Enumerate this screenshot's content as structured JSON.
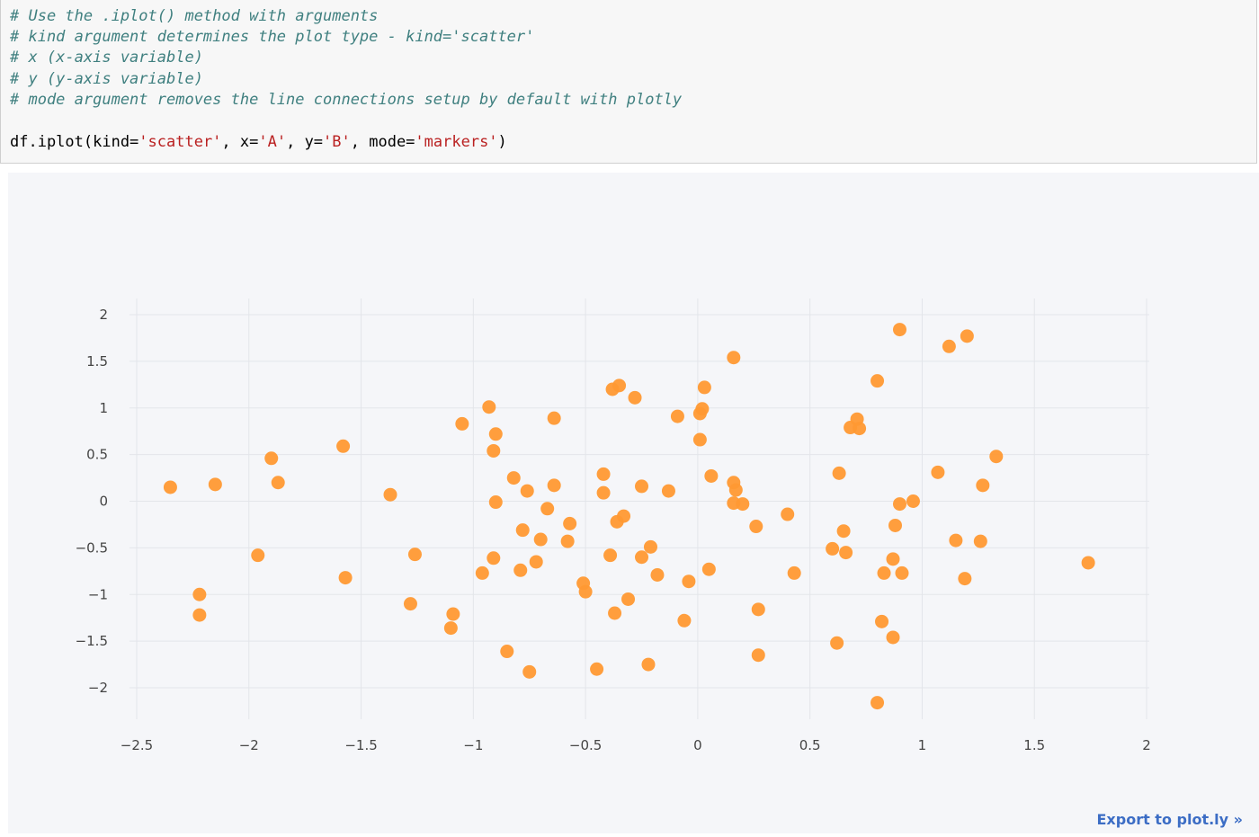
{
  "code_cell": {
    "comment_lines": [
      "# Use the .iplot() method with arguments",
      "# kind argument determines the plot type - kind='scatter'",
      "# x (x-axis variable)",
      "# y (y-axis variable)",
      "# mode argument removes the line connections setup by default with plotly"
    ],
    "code": {
      "part1": "df.iplot(kind=",
      "str1": "'scatter'",
      "part2": ", x=",
      "str2": "'A'",
      "part3": ", y=",
      "str3": "'B'",
      "part4": ", mode=",
      "str4": "'markers'",
      "part5": ")"
    }
  },
  "export_link": "Export to plot.ly »",
  "colors": {
    "marker": "#ff9933",
    "grid": "#e3e5ea",
    "background": "#f5f6f9",
    "link": "#3c6dc5"
  },
  "chart_data": {
    "type": "scatter",
    "mode": "markers",
    "xlim": [
      -2.5,
      2
    ],
    "ylim": [
      -2,
      2
    ],
    "x_ticks": [
      -2.5,
      -2,
      -1.5,
      -1,
      -0.5,
      0,
      0.5,
      1,
      1.5,
      2
    ],
    "y_ticks": [
      2,
      1.5,
      1,
      0.5,
      0,
      -0.5,
      -1,
      -1.5,
      -2
    ],
    "x_tick_labels": [
      "−2.5",
      "−2",
      "−1.5",
      "−1",
      "−0.5",
      "0",
      "0.5",
      "1",
      "1.5",
      "2"
    ],
    "y_tick_labels": [
      "2",
      "1.5",
      "1",
      "0.5",
      "0",
      "−0.5",
      "−1",
      "−1.5",
      "−2"
    ],
    "grid": true,
    "series": [
      {
        "points": [
          [
            -2.35,
            0.15
          ],
          [
            -2.15,
            0.18
          ],
          [
            -2.22,
            -1.0
          ],
          [
            -2.22,
            -1.22
          ],
          [
            -1.96,
            -0.58
          ],
          [
            -1.9,
            0.46
          ],
          [
            -1.87,
            0.2
          ],
          [
            -1.58,
            0.59
          ],
          [
            -1.57,
            -0.82
          ],
          [
            -1.37,
            0.07
          ],
          [
            -1.28,
            -1.1
          ],
          [
            -1.26,
            -0.57
          ],
          [
            -1.1,
            -1.36
          ],
          [
            -1.09,
            -1.21
          ],
          [
            -1.05,
            0.83
          ],
          [
            -0.96,
            -0.77
          ],
          [
            -0.93,
            1.01
          ],
          [
            -0.91,
            0.54
          ],
          [
            -0.9,
            0.72
          ],
          [
            -0.9,
            -0.01
          ],
          [
            -0.91,
            -0.61
          ],
          [
            -0.85,
            -1.61
          ],
          [
            -0.82,
            0.25
          ],
          [
            -0.79,
            -0.74
          ],
          [
            -0.78,
            -0.31
          ],
          [
            -0.76,
            0.11
          ],
          [
            -0.75,
            -1.83
          ],
          [
            -0.72,
            -0.65
          ],
          [
            -0.7,
            -0.41
          ],
          [
            -0.67,
            -0.08
          ],
          [
            -0.64,
            0.89
          ],
          [
            -0.64,
            0.17
          ],
          [
            -0.58,
            -0.43
          ],
          [
            -0.57,
            -0.24
          ],
          [
            -0.51,
            -0.88
          ],
          [
            -0.5,
            -0.97
          ],
          [
            -0.45,
            -1.8
          ],
          [
            -0.42,
            0.29
          ],
          [
            -0.42,
            0.09
          ],
          [
            -0.39,
            -0.58
          ],
          [
            -0.38,
            1.2
          ],
          [
            -0.37,
            -1.2
          ],
          [
            -0.36,
            -0.22
          ],
          [
            -0.35,
            1.24
          ],
          [
            -0.33,
            -0.16
          ],
          [
            -0.31,
            -1.05
          ],
          [
            -0.28,
            1.11
          ],
          [
            -0.25,
            0.16
          ],
          [
            -0.25,
            -0.6
          ],
          [
            -0.22,
            -1.75
          ],
          [
            -0.21,
            -0.49
          ],
          [
            -0.18,
            -0.79
          ],
          [
            -0.13,
            0.11
          ],
          [
            -0.09,
            0.91
          ],
          [
            -0.06,
            -1.28
          ],
          [
            -0.04,
            -0.86
          ],
          [
            0.01,
            0.66
          ],
          [
            0.01,
            0.94
          ],
          [
            0.02,
            0.99
          ],
          [
            0.03,
            1.22
          ],
          [
            0.05,
            -0.73
          ],
          [
            0.06,
            0.27
          ],
          [
            0.16,
            1.54
          ],
          [
            0.16,
            0.2
          ],
          [
            0.17,
            0.12
          ],
          [
            0.16,
            -0.02
          ],
          [
            0.2,
            -0.03
          ],
          [
            0.26,
            -0.27
          ],
          [
            0.27,
            -1.16
          ],
          [
            0.27,
            -1.65
          ],
          [
            0.4,
            -0.14
          ],
          [
            0.43,
            -0.77
          ],
          [
            0.6,
            -0.51
          ],
          [
            0.62,
            -1.52
          ],
          [
            0.63,
            0.3
          ],
          [
            0.65,
            -0.32
          ],
          [
            0.66,
            -0.55
          ],
          [
            0.68,
            0.79
          ],
          [
            0.71,
            0.88
          ],
          [
            0.72,
            0.78
          ],
          [
            0.8,
            1.29
          ],
          [
            0.8,
            -2.16
          ],
          [
            0.82,
            -1.29
          ],
          [
            0.83,
            -0.77
          ],
          [
            0.87,
            -1.46
          ],
          [
            0.87,
            -0.62
          ],
          [
            0.88,
            -0.26
          ],
          [
            0.9,
            -0.03
          ],
          [
            0.9,
            1.84
          ],
          [
            0.91,
            -0.77
          ],
          [
            0.96,
            0.0
          ],
          [
            1.07,
            0.31
          ],
          [
            1.12,
            1.66
          ],
          [
            1.15,
            -0.42
          ],
          [
            1.19,
            -0.83
          ],
          [
            1.2,
            1.77
          ],
          [
            1.26,
            -0.43
          ],
          [
            1.27,
            0.17
          ],
          [
            1.33,
            0.48
          ],
          [
            1.74,
            -0.66
          ]
        ]
      }
    ]
  }
}
